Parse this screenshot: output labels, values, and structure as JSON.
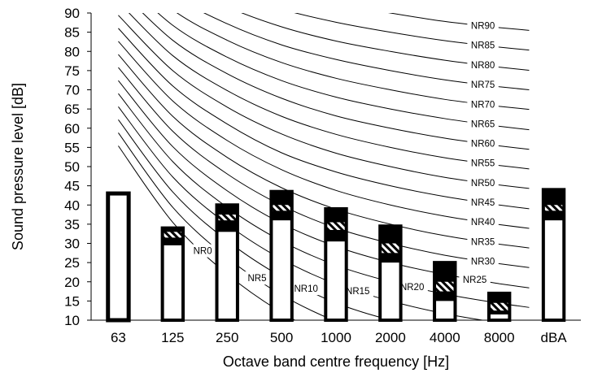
{
  "chart_data": {
    "type": "bar",
    "xlabel": "Octave band centre frequency [Hz]",
    "ylabel": "Sound pressure level [dB]",
    "ylim": [
      10,
      90
    ],
    "yticks": [
      10,
      15,
      20,
      25,
      30,
      35,
      40,
      45,
      50,
      55,
      60,
      65,
      70,
      75,
      80,
      85,
      90
    ],
    "grid": false,
    "categories": [
      "63",
      "125",
      "250",
      "500",
      "1000",
      "2000",
      "4000",
      "8000",
      "dBA"
    ],
    "series": [
      {
        "values": [
          43,
          29.5,
          33,
          36,
          30.5,
          25,
          15,
          11.5,
          36
        ]
      },
      {
        "values": [
          null,
          31.5,
          36,
          38.5,
          33.5,
          27.5,
          17.5,
          12.5,
          38.5
        ]
      },
      {
        "values": [
          null,
          33,
          37.5,
          40,
          35.5,
          30,
          20,
          14.5,
          40
        ]
      },
      {
        "values": [
          null,
          34,
          40,
          43.5,
          39,
          34.5,
          25,
          17,
          44
        ]
      }
    ],
    "nr_curves": [
      {
        "name": "NR0",
        "values": [
          55.4,
          35.5,
          22,
          12,
          4.8,
          0,
          -3.5,
          -6.1
        ]
      },
      {
        "name": "NR5",
        "values": [
          58.8,
          39.4,
          26.3,
          16.6,
          9.7,
          5,
          1.6,
          -1
        ]
      },
      {
        "name": "NR10",
        "values": [
          62.2,
          43.4,
          30.7,
          21.3,
          14.5,
          10,
          6.6,
          4.2
        ]
      },
      {
        "name": "NR15",
        "values": [
          65.6,
          47.3,
          35,
          25.9,
          19.4,
          15,
          11.7,
          9.3
        ]
      },
      {
        "name": "NR20",
        "values": [
          69,
          51.3,
          39.4,
          30.6,
          24.3,
          20,
          16.8,
          14.4
        ]
      },
      {
        "name": "NR25",
        "values": [
          72.4,
          55.2,
          43.7,
          35.2,
          29.2,
          25,
          21.9,
          19.5
        ]
      },
      {
        "name": "NR30",
        "values": [
          75.8,
          59.2,
          48.1,
          39.9,
          34,
          30,
          26.9,
          24.7
        ]
      },
      {
        "name": "NR35",
        "values": [
          79.2,
          63.1,
          52.4,
          44.5,
          38.9,
          35,
          32,
          29.8
        ]
      },
      {
        "name": "NR40",
        "values": [
          82.6,
          67.1,
          56.8,
          49.2,
          43.8,
          40,
          37.1,
          34.9
        ]
      },
      {
        "name": "NR45",
        "values": [
          86,
          71,
          61.1,
          53.6,
          48.6,
          45,
          42.2,
          40
        ]
      },
      {
        "name": "NR50",
        "values": [
          89.4,
          75,
          65.5,
          58.5,
          53.5,
          50,
          47.2,
          45.2
        ]
      },
      {
        "name": "NR55",
        "values": [
          92.9,
          78.9,
          69.8,
          63.1,
          58.4,
          55,
          52.3,
          50.3
        ]
      },
      {
        "name": "NR60",
        "values": [
          96.3,
          82.9,
          74.2,
          67.8,
          63.2,
          60,
          57.4,
          55.4
        ]
      },
      {
        "name": "NR65",
        "values": [
          99.7,
          86.8,
          78.5,
          72.4,
          68.1,
          65,
          62.5,
          60.5
        ]
      },
      {
        "name": "NR70",
        "values": [
          103.1,
          90.8,
          82.9,
          77.1,
          73,
          70,
          67.5,
          65.7
        ]
      },
      {
        "name": "NR75",
        "values": [
          106.5,
          94.7,
          87.2,
          81.7,
          77.9,
          75,
          72.6,
          70.8
        ]
      },
      {
        "name": "NR80",
        "values": [
          109.9,
          98.6,
          91.6,
          86.4,
          82.7,
          80,
          77.7,
          75.9
        ]
      },
      {
        "name": "NR85",
        "values": [
          113.3,
          102.6,
          95.9,
          91,
          87.6,
          85,
          82.8,
          81.1
        ]
      },
      {
        "name": "NR90",
        "values": [
          116.7,
          106.5,
          100.3,
          95.7,
          92.5,
          90,
          87.8,
          86.2
        ]
      }
    ]
  }
}
